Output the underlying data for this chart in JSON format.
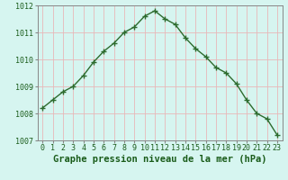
{
  "x": [
    0,
    1,
    2,
    3,
    4,
    5,
    6,
    7,
    8,
    9,
    10,
    11,
    12,
    13,
    14,
    15,
    16,
    17,
    18,
    19,
    20,
    21,
    22,
    23
  ],
  "y": [
    1008.2,
    1008.5,
    1008.8,
    1009.0,
    1009.4,
    1009.9,
    1010.3,
    1010.6,
    1011.0,
    1011.2,
    1011.6,
    1011.8,
    1011.5,
    1011.3,
    1010.8,
    1010.4,
    1010.1,
    1009.7,
    1009.5,
    1009.1,
    1008.5,
    1008.0,
    1007.8,
    1007.2
  ],
  "line_color": "#2d6b2d",
  "marker": "+",
  "bg_color": "#d6f5f0",
  "grid_color": "#e8b8b8",
  "xlabel": "Graphe pression niveau de la mer (hPa)",
  "xlabel_color": "#1a5c1a",
  "tick_color": "#1a5c1a",
  "ylim": [
    1007,
    1012
  ],
  "xlim": [
    -0.5,
    23.5
  ],
  "yticks": [
    1007,
    1008,
    1009,
    1010,
    1011,
    1012
  ],
  "xticks": [
    0,
    1,
    2,
    3,
    4,
    5,
    6,
    7,
    8,
    9,
    10,
    11,
    12,
    13,
    14,
    15,
    16,
    17,
    18,
    19,
    20,
    21,
    22,
    23
  ],
  "spine_color": "#888888",
  "font_family": "monospace",
  "xlabel_fontsize": 7.5,
  "tick_fontsize": 6,
  "line_width": 1.0,
  "marker_size": 4,
  "marker_ew": 1.0
}
